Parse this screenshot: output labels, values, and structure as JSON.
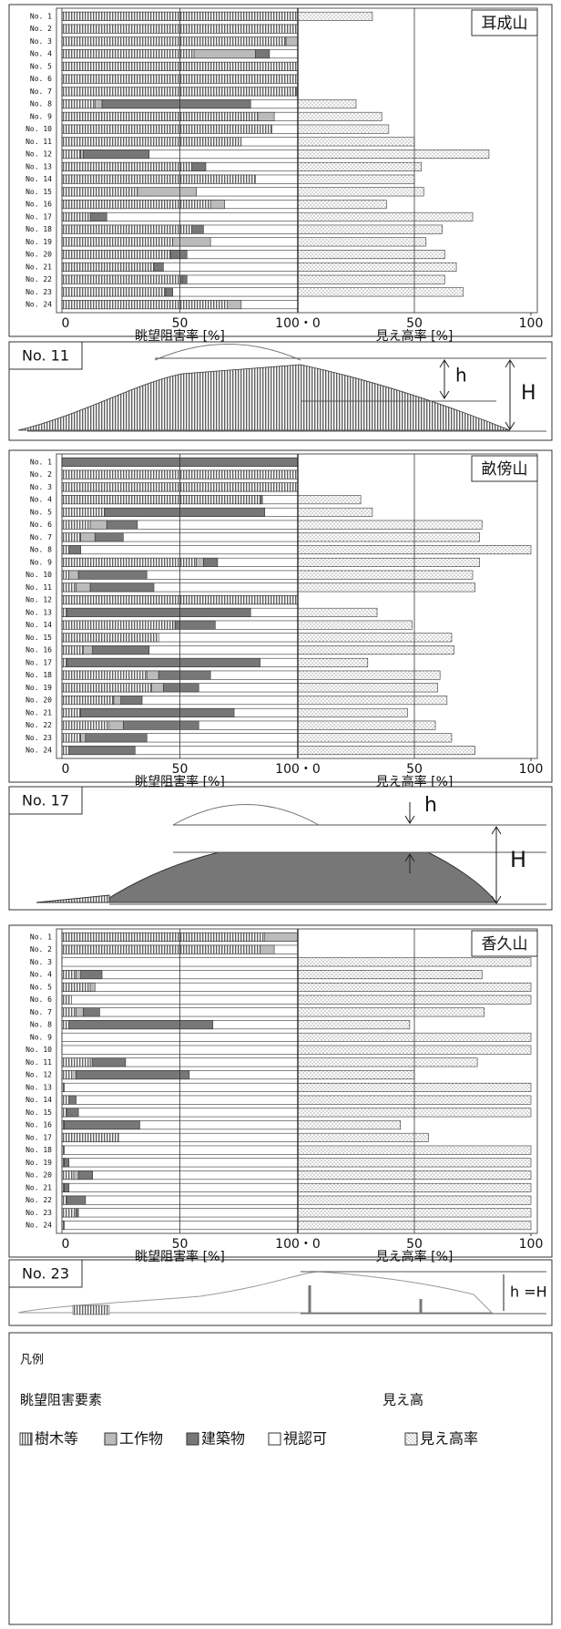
{
  "chart_data": [
    {
      "type": "bar",
      "title": "耳成山",
      "categories": [
        "No. 1",
        "No. 2",
        "No. 3",
        "No. 4",
        "No. 5",
        "No. 6",
        "No. 7",
        "No. 8",
        "No. 9",
        "No. 10",
        "No. 11",
        "No. 12",
        "No. 13",
        "No. 14",
        "No. 15",
        "No. 16",
        "No. 17",
        "No. 18",
        "No. 19",
        "No. 20",
        "No. 21",
        "No. 22",
        "No. 23",
        "No. 24"
      ],
      "xlabel": "眺望阻害率 [%]",
      "x2label": "見え高率 [%]",
      "xlim": [
        0,
        100
      ],
      "xticks": [
        0,
        50,
        {
          "value": 100,
          "label": "100・0"
        }
      ],
      "x2lim": [
        0,
        100
      ],
      "x2ticks": [
        50,
        100
      ],
      "series": [
        {
          "color": "#444444",
          "values": [
            100,
            100,
            95,
            56,
            100,
            100,
            99,
            14,
            83,
            89,
            76,
            8,
            55,
            82,
            32,
            63,
            12,
            55,
            47,
            46,
            39,
            51,
            44,
            70
          ]
        },
        {
          "color": "#bbbbbb",
          "values": [
            0,
            0,
            5,
            26,
            0,
            0,
            0,
            3,
            7,
            0,
            0,
            1,
            0,
            0,
            25,
            6,
            0,
            0,
            16,
            0,
            0,
            0,
            0,
            6
          ]
        },
        {
          "color": "#777777",
          "values": [
            0,
            0,
            0,
            6,
            0,
            0,
            1,
            63,
            0,
            0,
            0,
            28,
            6,
            0,
            0,
            0,
            7,
            5,
            0,
            7,
            4,
            2,
            3,
            0
          ]
        },
        {
          "color": "#999999",
          "axis": "x2",
          "values": [
            32,
            0,
            0,
            0,
            0,
            0,
            0,
            25,
            36,
            39,
            50,
            82,
            53,
            50,
            54,
            38,
            75,
            62,
            55,
            63,
            68,
            63,
            71,
            0
          ]
        }
      ],
      "inset": {
        "label": "No. 11",
        "h": "h",
        "H": "H"
      }
    },
    {
      "type": "bar",
      "title": "畝傍山",
      "categories": [
        "No. 1",
        "No. 2",
        "No. 3",
        "No. 4",
        "No. 5",
        "No. 6",
        "No. 7",
        "No. 8",
        "No. 9",
        "No. 10",
        "No. 11",
        "No. 12",
        "No. 13",
        "No. 14",
        "No. 15",
        "No. 16",
        "No. 17",
        "No. 18",
        "No. 19",
        "No. 20",
        "No. 21",
        "No. 22",
        "No. 23",
        "No. 24"
      ],
      "xlabel": "眺望阻害率 [%]",
      "x2label": "見え高率 [%]",
      "xlim": [
        0,
        100
      ],
      "xticks": [
        0,
        50,
        {
          "value": 100,
          "label": "100・0"
        }
      ],
      "x2lim": [
        0,
        100
      ],
      "x2ticks": [
        50,
        100
      ],
      "series": [
        {
          "color": "#444444",
          "values": [
            0,
            100,
            100,
            84,
            18,
            12,
            8,
            3,
            57,
            3,
            6,
            100,
            2,
            47,
            41,
            9,
            2,
            36,
            38,
            22,
            8,
            20,
            8,
            3
          ]
        },
        {
          "color": "#bbbbbb",
          "values": [
            0,
            0,
            0,
            0,
            0,
            7,
            6,
            0,
            3,
            4,
            6,
            0,
            0,
            1,
            0,
            4,
            0,
            5,
            5,
            3,
            0,
            6,
            2,
            0
          ]
        },
        {
          "color": "#777777",
          "values": [
            100,
            0,
            0,
            1,
            68,
            13,
            12,
            5,
            6,
            29,
            27,
            0,
            78,
            17,
            0,
            24,
            82,
            22,
            15,
            9,
            65,
            32,
            26,
            28
          ]
        },
        {
          "color": "#999999",
          "axis": "x2",
          "values": [
            0,
            0,
            0,
            27,
            32,
            79,
            78,
            100,
            78,
            75,
            76,
            0,
            34,
            49,
            66,
            67,
            30,
            61,
            60,
            64,
            47,
            59,
            66,
            76
          ]
        }
      ],
      "inset": {
        "label": "No. 17",
        "h": "h",
        "H": "H"
      }
    },
    {
      "type": "bar",
      "title": "香久山",
      "categories": [
        "No. 1",
        "No. 2",
        "No. 3",
        "No. 4",
        "No. 5",
        "No. 6",
        "No. 7",
        "No. 8",
        "No. 9",
        "No. 10",
        "No. 11",
        "No. 12",
        "No. 13",
        "No. 14",
        "No. 15",
        "No. 16",
        "No. 17",
        "No. 18",
        "No. 19",
        "No. 20",
        "No. 21",
        "No. 22",
        "No. 23",
        "No. 24"
      ],
      "xlabel": "眺望阻害率 [%]",
      "x2label": "見え高率 [%]",
      "xlim": [
        0,
        100
      ],
      "xticks": [
        0,
        50,
        {
          "value": 100,
          "label": "100・0"
        }
      ],
      "x2lim": [
        0,
        100
      ],
      "x2ticks": [
        50,
        100
      ],
      "series": [
        {
          "color": "#444444",
          "values": [
            86,
            84,
            0,
            6,
            12,
            4,
            6,
            3,
            0,
            0,
            12,
            4,
            1,
            3,
            2,
            1,
            24,
            1,
            1,
            5,
            1,
            2,
            6,
            1
          ]
        },
        {
          "color": "#bbbbbb",
          "values": [
            14,
            6,
            0,
            2,
            2,
            0,
            3,
            0,
            0,
            0,
            1,
            2,
            0,
            0,
            0,
            0,
            0,
            0,
            0,
            2,
            0,
            0,
            0,
            0
          ]
        },
        {
          "color": "#777777",
          "values": [
            0,
            0,
            0,
            9,
            0,
            0,
            7,
            61,
            0,
            0,
            14,
            48,
            0,
            3,
            5,
            32,
            0,
            0,
            2,
            6,
            2,
            8,
            1,
            0
          ]
        },
        {
          "color": "#999999",
          "axis": "x2",
          "values": [
            0,
            0,
            100,
            79,
            100,
            100,
            80,
            48,
            100,
            100,
            77,
            50,
            100,
            100,
            100,
            44,
            56,
            100,
            100,
            100,
            100,
            100,
            100,
            100
          ]
        }
      ],
      "inset": {
        "label": "No. 23",
        "hH": "h =H"
      }
    }
  ],
  "legend": {
    "title": "凡例",
    "group1": "眺望阻害要素",
    "group2": "見え高",
    "items": [
      "樹木等",
      "工作物",
      "建築物",
      "視認可",
      "見え高率"
    ]
  }
}
